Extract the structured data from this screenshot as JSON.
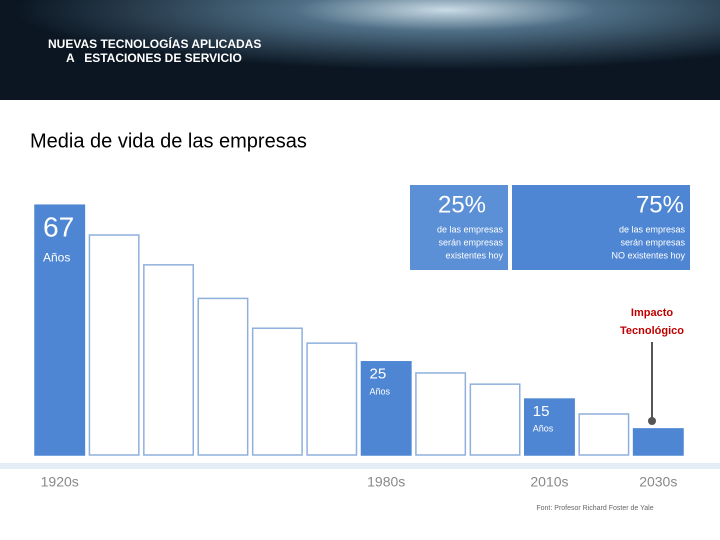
{
  "header": {
    "title_line1": "NUEVAS TECNOLOGÍAS APLICADAS",
    "title_line2": "A   ESTACIONES DE SERVICIO"
  },
  "chart_data": {
    "type": "bar",
    "title": "Media de vida de las empresas",
    "categories": [
      "1920s",
      null,
      null,
      null,
      null,
      null,
      "1980s",
      null,
      null,
      "2010s",
      null,
      "2030s"
    ],
    "values": [
      67,
      59,
      51,
      42,
      34,
      30,
      25,
      22,
      19,
      15,
      11,
      7
    ],
    "value_labels": [
      "67",
      null,
      null,
      null,
      null,
      null,
      "25",
      null,
      null,
      "15",
      null,
      null
    ],
    "unit_label": "Años",
    "colors": [
      "#4f86d3",
      "#ffffff",
      "#ffffff",
      "#ffffff",
      "#ffffff",
      "#ffffff",
      "#4f86d3",
      "#ffffff",
      "#ffffff",
      "#4f86d3",
      "#ffffff",
      "#4f86d3"
    ],
    "ylim": [
      0,
      70
    ],
    "annotations": {
      "box1_value": "25%",
      "box1_text": [
        "de las empresas",
        "serán empresas",
        "existentes hoy"
      ],
      "box2_value": "75%",
      "box2_text": [
        "de las empresas",
        "serán empresas",
        "NO existentes hoy"
      ],
      "impact": [
        "Impacto",
        "Tecnológico"
      ],
      "source": "Font: Profesor Richard Foster de Yale"
    }
  }
}
